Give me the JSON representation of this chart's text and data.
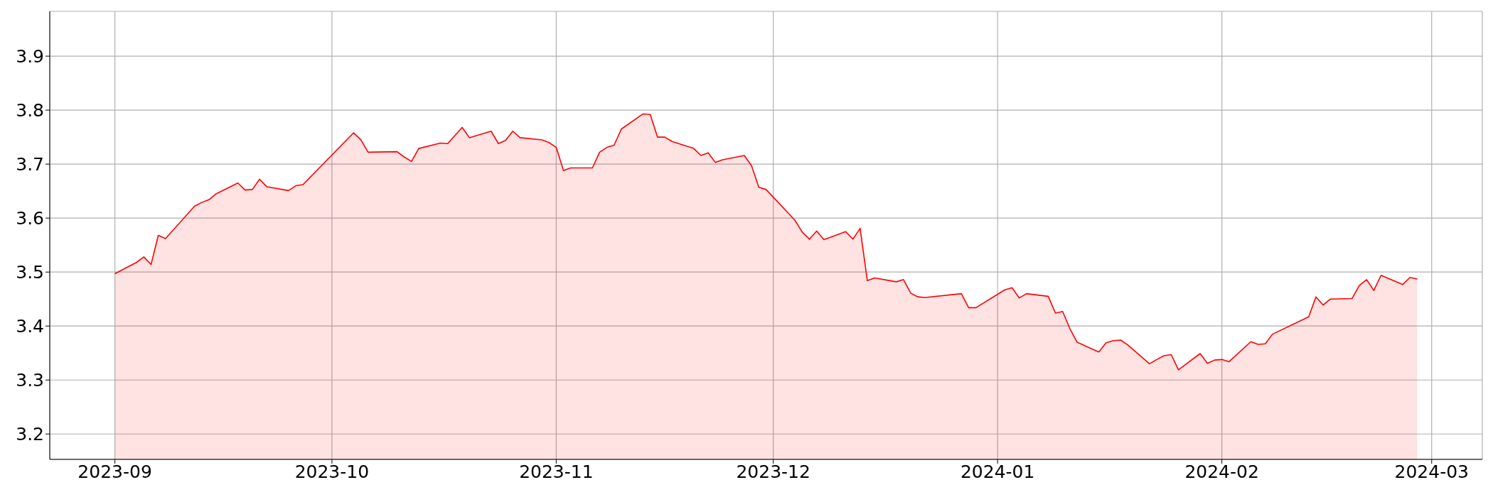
{
  "chart_data": {
    "type": "area",
    "x": [
      "2023-09-01",
      "2023-09-04",
      "2023-09-05",
      "2023-09-06",
      "2023-09-07",
      "2023-09-08",
      "2023-09-12",
      "2023-09-13",
      "2023-09-14",
      "2023-09-15",
      "2023-09-18",
      "2023-09-19",
      "2023-09-20",
      "2023-09-21",
      "2023-09-22",
      "2023-09-25",
      "2023-09-26",
      "2023-09-27",
      "2023-10-04",
      "2023-10-05",
      "2023-10-06",
      "2023-10-10",
      "2023-10-11",
      "2023-10-12",
      "2023-10-13",
      "2023-10-16",
      "2023-10-17",
      "2023-10-19",
      "2023-10-20",
      "2023-10-23",
      "2023-10-24",
      "2023-10-25",
      "2023-10-26",
      "2023-10-27",
      "2023-10-30",
      "2023-10-31",
      "2023-11-01",
      "2023-11-02",
      "2023-11-03",
      "2023-11-06",
      "2023-11-07",
      "2023-11-08",
      "2023-11-09",
      "2023-11-10",
      "2023-11-13",
      "2023-11-14",
      "2023-11-15",
      "2023-11-16",
      "2023-11-17",
      "2023-11-20",
      "2023-11-21",
      "2023-11-22",
      "2023-11-23",
      "2023-11-24",
      "2023-11-27",
      "2023-11-28",
      "2023-11-29",
      "2023-11-30",
      "2023-12-04",
      "2023-12-05",
      "2023-12-06",
      "2023-12-07",
      "2023-12-08",
      "2023-12-11",
      "2023-12-12",
      "2023-12-13",
      "2023-12-14",
      "2023-12-15",
      "2023-12-18",
      "2023-12-19",
      "2023-12-20",
      "2023-12-21",
      "2023-12-22",
      "2023-12-27",
      "2023-12-28",
      "2023-12-29",
      "2024-01-02",
      "2024-01-03",
      "2024-01-04",
      "2024-01-05",
      "2024-01-08",
      "2024-01-09",
      "2024-01-10",
      "2024-01-11",
      "2024-01-12",
      "2024-01-15",
      "2024-01-16",
      "2024-01-17",
      "2024-01-18",
      "2024-01-19",
      "2024-01-22",
      "2024-01-23",
      "2024-01-24",
      "2024-01-25",
      "2024-01-26",
      "2024-01-29",
      "2024-01-30",
      "2024-01-31",
      "2024-02-01",
      "2024-02-02",
      "2024-02-05",
      "2024-02-06",
      "2024-02-07",
      "2024-02-08",
      "2024-02-13",
      "2024-02-14",
      "2024-02-15",
      "2024-02-16",
      "2024-02-19",
      "2024-02-20",
      "2024-02-21",
      "2024-02-22",
      "2024-02-23",
      "2024-02-26",
      "2024-02-27",
      "2024-02-28"
    ],
    "series": [
      {
        "color": "#ff0000",
        "values": [
          3.497,
          3.518,
          3.528,
          3.514,
          3.568,
          3.562,
          3.622,
          3.629,
          3.634,
          3.645,
          3.665,
          3.652,
          3.653,
          3.672,
          3.658,
          3.651,
          3.66,
          3.662,
          3.758,
          3.745,
          3.722,
          3.723,
          3.713,
          3.705,
          3.729,
          3.739,
          3.738,
          3.768,
          3.749,
          3.761,
          3.738,
          3.744,
          3.761,
          3.749,
          3.745,
          3.74,
          3.731,
          3.688,
          3.693,
          3.693,
          3.722,
          3.731,
          3.735,
          3.765,
          3.793,
          3.792,
          3.75,
          3.75,
          3.742,
          3.729,
          3.716,
          3.721,
          3.703,
          3.708,
          3.716,
          3.697,
          3.657,
          3.653,
          3.596,
          3.574,
          3.561,
          3.576,
          3.56,
          3.575,
          3.561,
          3.581,
          3.484,
          3.489,
          3.482,
          3.486,
          3.461,
          3.454,
          3.453,
          3.46,
          3.434,
          3.434,
          3.467,
          3.471,
          3.452,
          3.46,
          3.455,
          3.424,
          3.427,
          3.395,
          3.37,
          3.352,
          3.369,
          3.373,
          3.374,
          3.365,
          3.33,
          3.338,
          3.345,
          3.347,
          3.319,
          3.349,
          3.331,
          3.337,
          3.338,
          3.334,
          3.371,
          3.366,
          3.367,
          3.385,
          3.417,
          3.454,
          3.439,
          3.45,
          3.451,
          3.475,
          3.486,
          3.466,
          3.494,
          3.477,
          3.49,
          3.487
        ]
      }
    ],
    "xlim": [
      "2023-08-23",
      "2024-03-08"
    ],
    "xticks": [
      {
        "value": "2023-09-01",
        "label": "2023-09"
      },
      {
        "value": "2023-10-01",
        "label": "2023-10"
      },
      {
        "value": "2023-11-01",
        "label": "2023-11"
      },
      {
        "value": "2023-12-01",
        "label": "2023-12"
      },
      {
        "value": "2024-01-01",
        "label": "2024-01"
      },
      {
        "value": "2024-02-01",
        "label": "2024-02"
      },
      {
        "value": "2024-03-01",
        "label": "2024-03"
      }
    ],
    "ylim": [
      3.153,
      3.983
    ],
    "yticks": [
      3.2,
      3.3,
      3.4,
      3.5,
      3.6,
      3.7,
      3.8,
      3.9
    ],
    "grid": true,
    "legend": false
  }
}
